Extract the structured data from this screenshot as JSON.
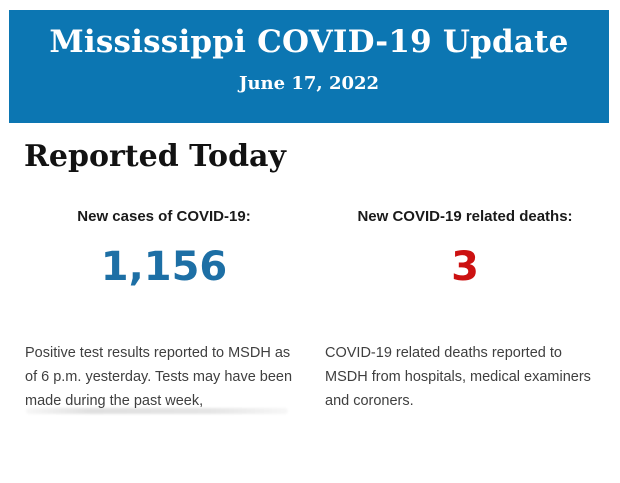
{
  "header": {
    "title": "Mississippi COVID-19 Update",
    "date": "June 17, 2022",
    "background_color": "#0c76b2",
    "text_color": "#ffffff"
  },
  "section": {
    "heading": "Reported Today"
  },
  "stats": {
    "cases": {
      "label": "New cases of COVID-19:",
      "value": "1,156",
      "value_color": "#1d6fa5",
      "description": "Positive test results reported to MSDH as\nof 6 p.m. yesterday. Tests may have been\nmade during the past week,"
    },
    "deaths": {
      "label": "New COVID-19 related deaths:",
      "value": "3",
      "value_color": "#cc1111",
      "description": "COVID-19 related deaths reported to\nMSDH from hospitals, medical examiners\nand coroners."
    }
  }
}
